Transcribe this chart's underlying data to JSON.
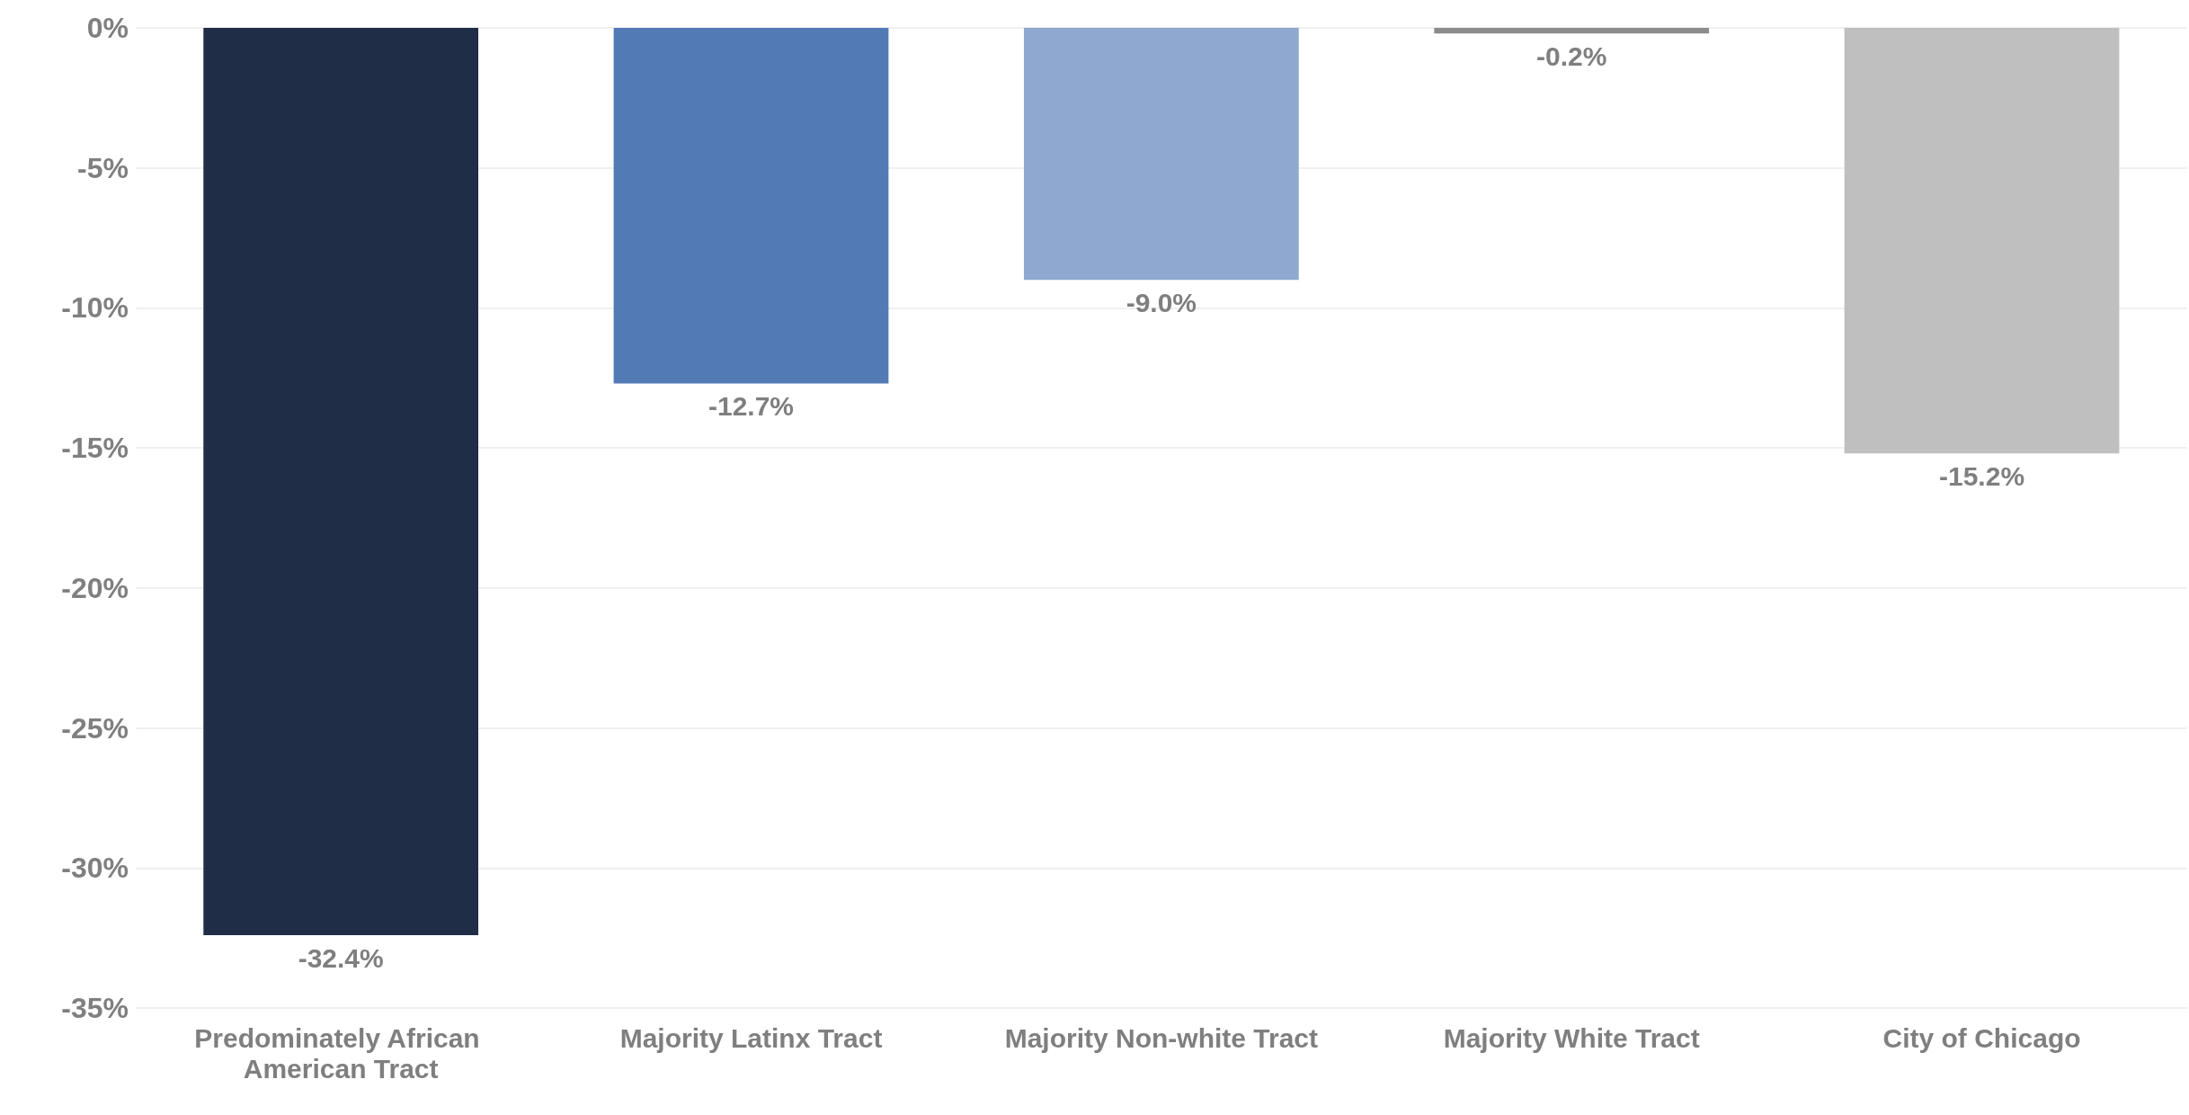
{
  "chart_data": {
    "type": "bar",
    "categories": [
      "Predominately African American Tract",
      "Majority Latinx Tract",
      "Majority Non-white Tract",
      "Majority White Tract",
      "City of Chicago"
    ],
    "values": [
      -32.4,
      -12.7,
      -9.0,
      -0.2,
      -15.2
    ],
    "colors": [
      "#1f2d47",
      "#527bb6",
      "#8ea8cf",
      "#8c8c8c",
      "#bfbfbf"
    ],
    "value_labels": [
      "-32.4%",
      "-12.7%",
      "-9.0%",
      "-0.2%",
      "-15.2%"
    ],
    "ylim": [
      -35,
      0
    ],
    "yticks": [
      {
        "value": 0,
        "label": "0%"
      },
      {
        "value": -5,
        "label": "-5%"
      },
      {
        "value": -10,
        "label": "-10%"
      },
      {
        "value": -15,
        "label": "-15%"
      },
      {
        "value": -20,
        "label": "-20%"
      },
      {
        "value": -25,
        "label": "-25%"
      },
      {
        "value": -30,
        "label": "-30%"
      },
      {
        "value": -35,
        "label": "-35%"
      }
    ],
    "grid": "y"
  }
}
